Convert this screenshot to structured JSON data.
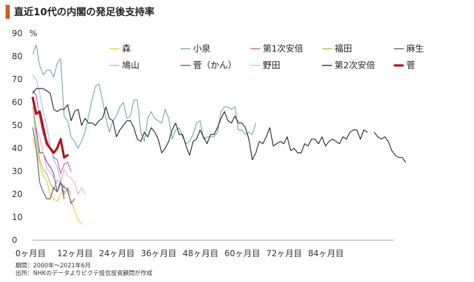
{
  "title": "直近10代の内閣の発足後支持率",
  "footnotes": [
    "期間：2000年～2021年6月",
    "出所：NHKのデータよりピクテ投信投資顧問が作成"
  ],
  "chart_data": {
    "type": "line",
    "title": "直近10代の内閣の発足後支持率",
    "ylabel": "%",
    "ylim": [
      0,
      90
    ],
    "yticks": [
      0,
      10,
      20,
      30,
      40,
      50,
      60,
      70,
      80,
      90
    ],
    "xlim": [
      0,
      100
    ],
    "xticks": [
      0,
      12,
      24,
      36,
      48,
      60,
      72,
      84
    ],
    "xtick_labels": [
      "0ヶ月目",
      "12ヶ月目",
      "24ヶ月目",
      "36ヶ月目",
      "48ヶ月目",
      "60ヶ月目",
      "72ヶ月目",
      "84ヶ月目"
    ],
    "grid": false,
    "legend_position": "top-right",
    "series": [
      {
        "name": "森",
        "color": "#f5c518",
        "width": 1.1,
        "values": [
          44,
          40,
          33,
          28,
          26,
          20,
          18,
          17,
          20,
          24,
          21,
          17,
          13,
          9,
          7
        ]
      },
      {
        "name": "小泉",
        "color": "#66a8a0",
        "width": 1.1,
        "values": [
          81,
          85,
          76,
          72,
          74,
          74,
          71,
          77,
          79,
          54,
          52,
          45,
          43,
          40,
          43,
          47,
          54,
          61,
          67,
          68,
          61,
          53,
          47,
          52,
          54,
          58,
          60,
          53,
          54,
          61,
          61,
          47,
          43,
          53,
          56,
          53,
          52,
          51,
          57,
          53,
          44,
          48,
          49,
          45,
          42,
          43,
          46,
          51,
          52,
          44,
          45,
          45,
          45,
          47,
          56,
          58,
          58,
          57,
          58,
          48,
          48,
          46,
          47,
          46,
          51
        ]
      },
      {
        "name": "第1次安倍",
        "color": "#d64aa8",
        "width": 1.1,
        "values": [
          65,
          63,
          53,
          46,
          44,
          40,
          36,
          35,
          29,
          33,
          34,
          30
        ]
      },
      {
        "name": "福田",
        "color": "#8cc63f",
        "width": 1.1,
        "values": [
          58,
          44,
          35,
          31,
          29,
          25,
          22,
          26,
          25,
          20,
          23,
          20
        ]
      },
      {
        "name": "麻生",
        "color": "#555555",
        "width": 1.1,
        "values": [
          49,
          40,
          25,
          21,
          18,
          18,
          23,
          21,
          26,
          18
        ]
      },
      {
        "name": "鳩山",
        "color": "#8fc6e6",
        "width": 1.1,
        "values": [
          72,
          70,
          64,
          56,
          50,
          41,
          35,
          32,
          26,
          21,
          22
        ]
      },
      {
        "name": "菅（かん）",
        "color": "#6b3fa0",
        "width": 1.1,
        "values": [
          61,
          48,
          38,
          38,
          34,
          32,
          29,
          21,
          25,
          23,
          22,
          16,
          18
        ]
      },
      {
        "name": "野田",
        "color": "#f0a8cc",
        "width": 1.1,
        "values": [
          60,
          49,
          45,
          38,
          31,
          30,
          27,
          26,
          25,
          31,
          28,
          27,
          25,
          20,
          23,
          20
        ]
      },
      {
        "name": "第2次安倍",
        "color": "#1a1a1a",
        "width": 1.1,
        "values": [
          64,
          66,
          66,
          66,
          65,
          64,
          57,
          56,
          57,
          57,
          59,
          52,
          56,
          57,
          50,
          53,
          51,
          51,
          50,
          52,
          53,
          58,
          53,
          52,
          45,
          48,
          50,
          52,
          52,
          49,
          44,
          43,
          47,
          45,
          49,
          47,
          44,
          38,
          40,
          43,
          48,
          51,
          46,
          46,
          41,
          37,
          43,
          44,
          48,
          45,
          42,
          46,
          46,
          49,
          53,
          56,
          52,
          51,
          54,
          51,
          51,
          49,
          44,
          35,
          38,
          43,
          42,
          45,
          49,
          41,
          42,
          43,
          42,
          45,
          39,
          40,
          38,
          38,
          42,
          41,
          44,
          44,
          42,
          45,
          41,
          43,
          44,
          43,
          42,
          45,
          44,
          47,
          48,
          48,
          44,
          48,
          47,
          null,
          47,
          45,
          44,
          45,
          43,
          39,
          37,
          36,
          36,
          34
        ]
      },
      {
        "name": "菅",
        "color": "#b0121b",
        "width": 3.2,
        "values": [
          62,
          55,
          56,
          49,
          42,
          40,
          38,
          40,
          44,
          36,
          37
        ]
      }
    ]
  }
}
